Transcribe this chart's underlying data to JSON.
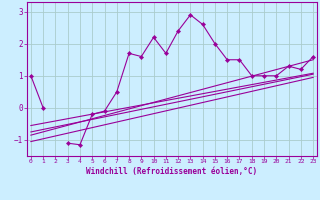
{
  "xlabel": "Windchill (Refroidissement éolien,°C)",
  "x": [
    0,
    1,
    2,
    3,
    4,
    5,
    6,
    7,
    8,
    9,
    10,
    11,
    12,
    13,
    14,
    15,
    16,
    17,
    18,
    19,
    20,
    21,
    22,
    23
  ],
  "y_line": [
    1.0,
    0.0,
    null,
    -1.1,
    -1.15,
    -0.2,
    -0.1,
    0.5,
    1.7,
    1.6,
    2.2,
    1.7,
    2.4,
    2.9,
    2.6,
    2.0,
    1.5,
    1.5,
    1.0,
    1.0,
    1.0,
    1.3,
    1.2,
    1.6
  ],
  "ylim": [
    -1.5,
    3.3
  ],
  "xlim": [
    -0.3,
    23.3
  ],
  "bg_color": "#cceeff",
  "line_color": "#990099",
  "grid_color": "#aacccc",
  "yticks": [
    -1,
    0,
    1,
    2,
    3
  ],
  "xticks": [
    0,
    1,
    2,
    3,
    4,
    5,
    6,
    7,
    8,
    9,
    10,
    11,
    12,
    13,
    14,
    15,
    16,
    17,
    18,
    19,
    20,
    21,
    22,
    23
  ],
  "trend_lines": [
    {
      "x0": 0,
      "y0": -0.55,
      "x1": 23,
      "y1": 1.08
    },
    {
      "x0": 0,
      "y0": -0.75,
      "x1": 23,
      "y1": 1.05
    },
    {
      "x0": 0,
      "y0": -1.05,
      "x1": 23,
      "y1": 0.95
    },
    {
      "x0": 0,
      "y0": -0.85,
      "x1": 23,
      "y1": 1.5
    }
  ]
}
